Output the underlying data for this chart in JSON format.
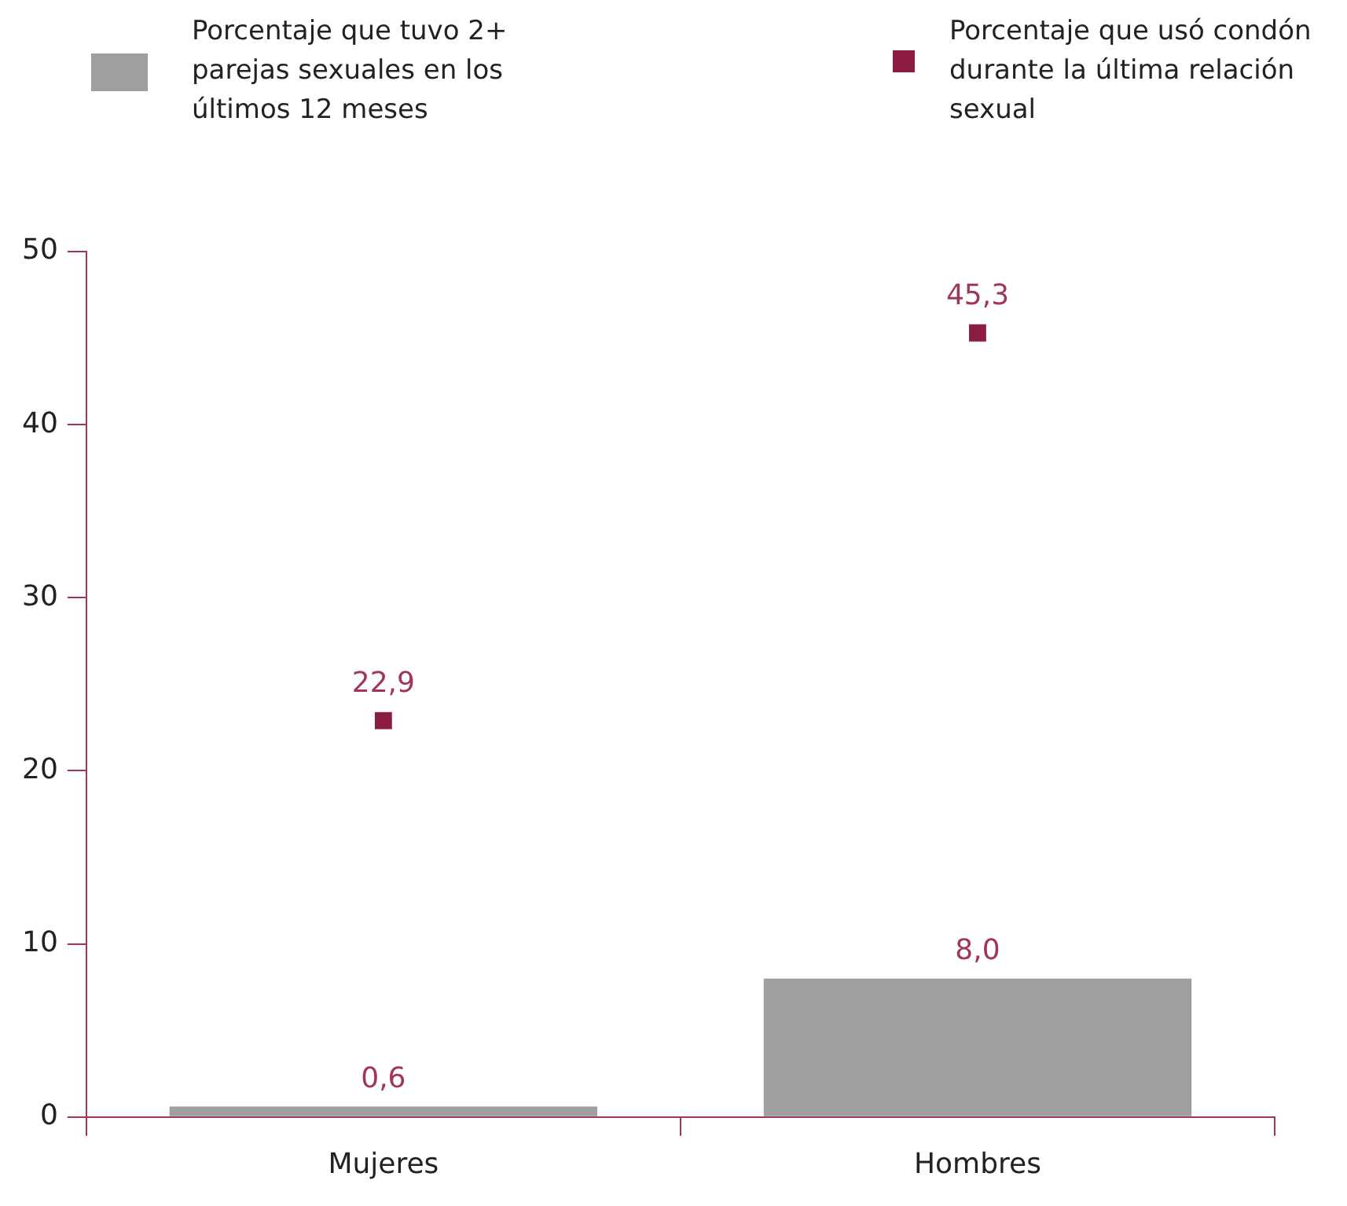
{
  "chart_data": {
    "type": "bar",
    "categories": [
      "Mujeres",
      "Hombres"
    ],
    "series": [
      {
        "name": "Porcentaje que tuvo 2+ parejas sexuales en los últimos 12 meses",
        "color": "#a09f9e",
        "values": [
          0.6,
          8.0
        ],
        "value_labels": [
          "0,6",
          "8,0"
        ]
      },
      {
        "name": "Porcentaje que usó condón durante la última relación sexual",
        "type": "scatter",
        "color": "#8c1c44",
        "values": [
          22.9,
          45.3
        ],
        "value_labels": [
          "22,9",
          "45,3"
        ],
        "marker": "square"
      }
    ],
    "ylim": [
      0,
      50
    ],
    "yticks": [
      0,
      10,
      20,
      30,
      40,
      50
    ],
    "grid": false,
    "legend": "top"
  }
}
